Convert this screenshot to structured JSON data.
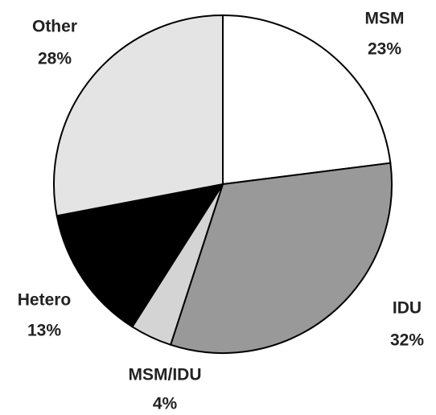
{
  "chart_data": {
    "type": "pie",
    "categories": [
      "MSM",
      "IDU",
      "MSM/IDU",
      "Hetero",
      "Other"
    ],
    "values": [
      23,
      32,
      4,
      13,
      28
    ],
    "value_labels": [
      "23%",
      "32%",
      "4%",
      "13%",
      "28%"
    ],
    "colors": [
      "#ffffff",
      "#999999",
      "#d4d4d4",
      "#000000",
      "#e4e4e4"
    ]
  }
}
